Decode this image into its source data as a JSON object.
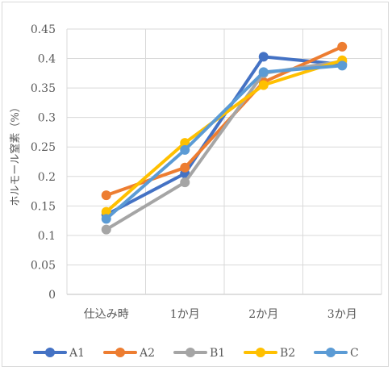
{
  "chart_data": {
    "type": "line",
    "title": "",
    "xlabel": "",
    "ylabel": "ホルモール窒素（%）",
    "ylim": [
      0,
      0.45
    ],
    "yticks": [
      0,
      0.05,
      0.1,
      0.15,
      0.2,
      0.25,
      0.3,
      0.35,
      0.4,
      0.45
    ],
    "ytick_labels": [
      "0",
      "0.05",
      "0.1",
      "0.15",
      "0.2",
      "0.25",
      "0.3",
      "0.35",
      "0.4",
      "0.45"
    ],
    "categories": [
      "仕込み時",
      "1か月",
      "2か月",
      "3か月"
    ],
    "grid": true,
    "legend_position": "bottom",
    "series": [
      {
        "name": "A1",
        "color": "#4472C4",
        "values": [
          0.135,
          0.205,
          0.403,
          0.39
        ]
      },
      {
        "name": "A2",
        "color": "#ED7D31",
        "values": [
          0.168,
          0.215,
          0.36,
          0.42
        ]
      },
      {
        "name": "B1",
        "color": "#A5A5A5",
        "values": [
          0.11,
          0.19,
          0.375,
          0.395
        ]
      },
      {
        "name": "B2",
        "color": "#FFC000",
        "values": [
          0.14,
          0.257,
          0.355,
          0.397
        ]
      },
      {
        "name": "C",
        "color": "#5B9BD5",
        "values": [
          0.128,
          0.245,
          0.377,
          0.388
        ]
      }
    ]
  }
}
